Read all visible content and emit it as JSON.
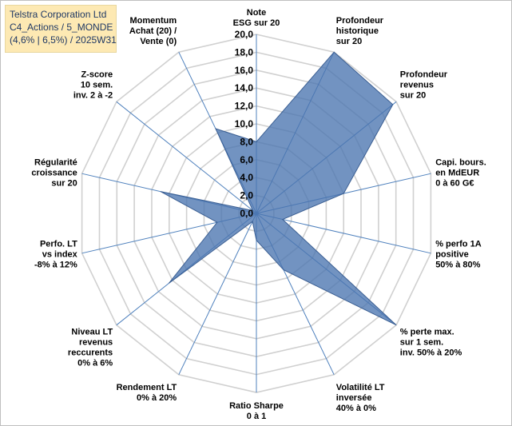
{
  "title_box": {
    "line1": "Telstra Corporation Ltd",
    "line2": "C4_Actions / 5_MONDE",
    "line3": "(4,6% | 6,5%) / 2025W31"
  },
  "chart_data": {
    "type": "radar",
    "r_range": [
      0,
      20
    ],
    "r_ticks": [
      "0,0",
      "2,0",
      "4,0",
      "6,0",
      "8,0",
      "10,0",
      "12,0",
      "14,0",
      "16,0",
      "18,0",
      "20,0"
    ],
    "axes": [
      {
        "lines": [
          "Note",
          "ESG sur 20"
        ]
      },
      {
        "lines": [
          "Profondeur",
          "historique",
          "sur 20"
        ]
      },
      {
        "lines": [
          "Profondeur",
          "revenus",
          "sur 20"
        ]
      },
      {
        "lines": [
          "Capi. bours.",
          "en MdEUR",
          "0 à 60 G€"
        ]
      },
      {
        "lines": [
          "% perfo 1A",
          "positive",
          "50% à 80%"
        ]
      },
      {
        "lines": [
          "% perte max.",
          "sur 1 sem.",
          "inv. 50% à 20%"
        ]
      },
      {
        "lines": [
          "Volatilité LT",
          "inversée",
          "40% à 0%"
        ]
      },
      {
        "lines": [
          "Ratio Sharpe",
          "0 à 1"
        ]
      },
      {
        "lines": [
          "Rendement LT",
          "0% à 20%"
        ]
      },
      {
        "lines": [
          "Niveau LT",
          "revenus",
          "reccurents",
          "0% à 6%"
        ]
      },
      {
        "lines": [
          "Perfo. LT",
          "vs index",
          "-8% à 12%"
        ]
      },
      {
        "lines": [
          "Régularité",
          "croissance",
          "sur 20"
        ]
      },
      {
        "lines": [
          "Z-score",
          "10 sem.",
          "inv. 2 à -2"
        ]
      },
      {
        "lines": [
          "Momentum",
          "Achat (20) /",
          "Vente (0)"
        ]
      }
    ],
    "series": [
      {
        "values": [
          8.0,
          20.0,
          19.5,
          10.0,
          3.0,
          20.0,
          7.0,
          3.0,
          1.0,
          12.5,
          4.5,
          11.0,
          0.5,
          10.5
        ],
        "color": "#4a74b0"
      }
    ],
    "grid": true
  }
}
